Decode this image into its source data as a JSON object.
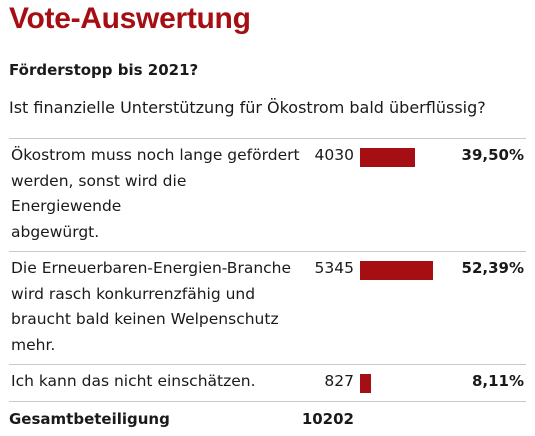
{
  "title": "Vote-Auswertung",
  "subtitle": "Förderstopp bis 2021?",
  "question": "Ist finanzielle Unterstützung für Ökostrom bald überflüssig?",
  "accent_color": "#a50e12",
  "options": [
    {
      "lines": [
        "Ökostrom muss noch lange gefördert",
        "werden, sonst wird die Energiewende",
        "abgewürgt."
      ],
      "count": "4030",
      "percent": "39,50%",
      "share": 0.395
    },
    {
      "lines": [
        "Die Erneuerbaren-Energien-Branche",
        "wird rasch konkurrenzfähig und",
        "braucht bald keinen Welpenschutz",
        "mehr."
      ],
      "count": "5345",
      "percent": "52,39%",
      "share": 0.5239
    },
    {
      "lines": [
        "Ich kann das nicht einschätzen."
      ],
      "count": "827",
      "percent": "8,11%",
      "share": 0.0811
    }
  ],
  "total": {
    "label": "Gesamtbeteiligung",
    "count": "10202"
  }
}
